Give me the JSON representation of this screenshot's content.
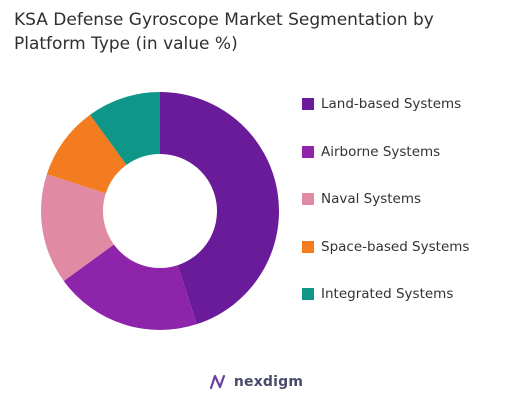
{
  "chart_data": {
    "type": "pie",
    "donut": true,
    "title": "KSA Defense Gyroscope Market Segmentation by Platform Type (in value %)",
    "categories": [
      "Land-based Systems",
      "Airborne Systems",
      "Naval Systems",
      "Space-based Systems",
      "Integrated Systems"
    ],
    "values": [
      45,
      20,
      15,
      10,
      10
    ],
    "colors": [
      "#6a1b9a",
      "#8e24aa",
      "#e08aa3",
      "#f37c20",
      "#0e9688"
    ],
    "legend_position": "right"
  },
  "branding": {
    "logo_text": "nexdigm",
    "logo_icon": "nexdigm-logo-icon"
  }
}
